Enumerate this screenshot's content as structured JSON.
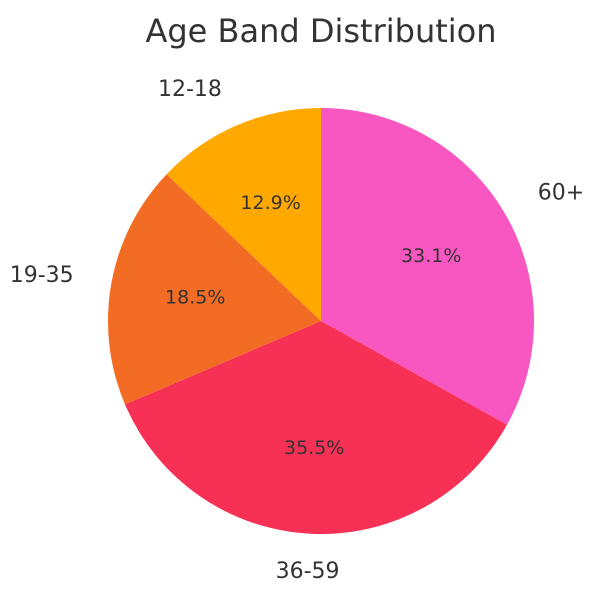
{
  "chart_data": {
    "type": "pie",
    "title": "Age Band Distribution",
    "start_angle_deg": 90,
    "direction": "clockwise",
    "slices": [
      {
        "label": "60+",
        "value": 33.1,
        "pct_label": "33.1%",
        "color": "#F857C1"
      },
      {
        "label": "36-59",
        "value": 35.5,
        "pct_label": "35.5%",
        "color": "#F63155"
      },
      {
        "label": "19-35",
        "value": 18.5,
        "pct_label": "18.5%",
        "color": "#F36C24"
      },
      {
        "label": "12-18",
        "value": 12.9,
        "pct_label": "12.9%",
        "color": "#FFA800"
      }
    ]
  }
}
